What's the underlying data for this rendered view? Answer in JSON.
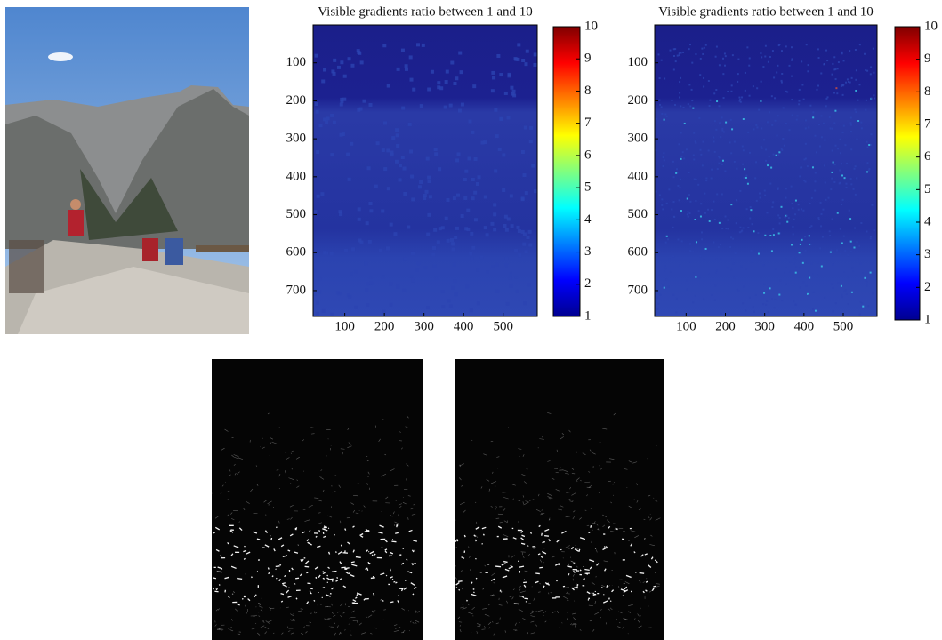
{
  "panels": [
    {
      "title": "Visible gradients ratio between 1 and 10",
      "xticks": [
        100,
        200,
        300,
        400,
        500
      ],
      "xlim": [
        20,
        586
      ],
      "yticks": [
        100,
        200,
        300,
        400,
        500,
        600,
        700
      ],
      "ylim": [
        0,
        768
      ],
      "colorbar": {
        "ticks": [
          1,
          2,
          3,
          4,
          5,
          6,
          7,
          8,
          9,
          10
        ],
        "lim": [
          1,
          10
        ]
      }
    },
    {
      "title": "Visible gradients ratio between 1 and 10",
      "xticks": [
        100,
        200,
        300,
        400,
        500
      ],
      "xlim": [
        20,
        586
      ],
      "yticks": [
        100,
        200,
        300,
        400,
        500,
        600,
        700
      ],
      "ylim": [
        0,
        768
      ],
      "colorbar": {
        "ticks": [
          1,
          2,
          3,
          4,
          5,
          6,
          7,
          8,
          9,
          10
        ],
        "lim": [
          1,
          10
        ]
      }
    }
  ]
}
